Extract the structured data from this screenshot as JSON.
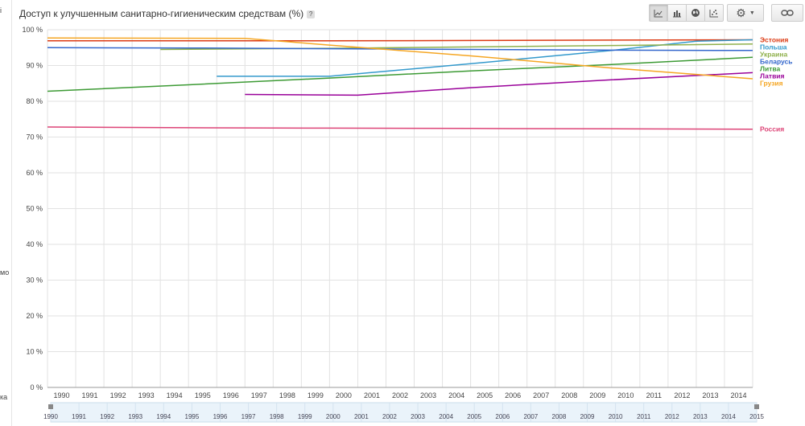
{
  "title": "Доступ к улучшенным санитарно-гигиеническим средствам (%)",
  "help_label": "?",
  "left_fragments": [
    "і",
    "мо",
    "ка"
  ],
  "toolbar": {
    "line_icon": "line-chart-icon",
    "bar_icon": "bar-chart-icon",
    "map_icon": "globe-icon",
    "scatter_icon": "scatter-chart-icon",
    "settings_icon": "gear-icon",
    "link_icon": "link-icon"
  },
  "chart_data": {
    "type": "line",
    "title": "Доступ к улучшенным санитарно-гигиеническим средствам (%)",
    "xlabel": "",
    "ylabel": "",
    "xlim": [
      1990,
      2015
    ],
    "ylim": [
      0,
      100
    ],
    "y_ticks": [
      "0 %",
      "10 %",
      "20 %",
      "30 %",
      "40 %",
      "50 %",
      "60 %",
      "70 %",
      "80 %",
      "90 %",
      "100 %"
    ],
    "x_ticks": [
      "1990",
      "1991",
      "1992",
      "1993",
      "1994",
      "1995",
      "1996",
      "1997",
      "1998",
      "1999",
      "2000",
      "2001",
      "2002",
      "2003",
      "2004",
      "2005",
      "2006",
      "2007",
      "2008",
      "2009",
      "2010",
      "2011",
      "2012",
      "2013",
      "2014"
    ],
    "timeline_ticks": [
      "1990",
      "1991",
      "1992",
      "1993",
      "1994",
      "1995",
      "1996",
      "1997",
      "1998",
      "1999",
      "2000",
      "2001",
      "2002",
      "2003",
      "2004",
      "2005",
      "2006",
      "2007",
      "2008",
      "2009",
      "2010",
      "2011",
      "2012",
      "2013",
      "2014",
      "2015"
    ],
    "grid": true,
    "legend": "right",
    "series": [
      {
        "name": "Эстония",
        "color": "#dc3912",
        "x": [
          1990,
          1995,
          2000,
          2005,
          2010,
          2015
        ],
        "y": [
          96.9,
          96.9,
          96.9,
          97.0,
          97.1,
          97.2
        ]
      },
      {
        "name": "Польша",
        "color": "#3399cc",
        "x": [
          1996,
          2000,
          2005,
          2010,
          2013,
          2015
        ],
        "y": [
          87.0,
          87.0,
          90.5,
          94.2,
          96.8,
          97.2
        ]
      },
      {
        "name": "Украина",
        "color": "#8fb04b",
        "x": [
          1994,
          2000,
          2005,
          2010,
          2015
        ],
        "y": [
          94.5,
          94.8,
          95.2,
          95.6,
          96.0
        ]
      },
      {
        "name": "Беларусь",
        "color": "#3366cc",
        "x": [
          1990,
          1995,
          2000,
          2005,
          2010,
          2015
        ],
        "y": [
          95.0,
          94.9,
          94.7,
          94.5,
          94.3,
          94.2
        ]
      },
      {
        "name": "Литва",
        "color": "#3c9a34",
        "x": [
          1990,
          1995,
          2000,
          2005,
          2010,
          2015
        ],
        "y": [
          82.8,
          84.6,
          86.5,
          88.5,
          90.3,
          92.3
        ]
      },
      {
        "name": "Латвия",
        "color": "#990099",
        "x": [
          1997,
          2001,
          2005,
          2010,
          2015
        ],
        "y": [
          81.9,
          81.7,
          83.8,
          86.0,
          88.0
        ]
      },
      {
        "name": "Грузия",
        "color": "#f5a623",
        "x": [
          1990,
          1997,
          2000,
          2005,
          2010,
          2015
        ],
        "y": [
          97.7,
          97.6,
          95.7,
          92.7,
          89.3,
          86.3
        ]
      },
      {
        "name": "Россия",
        "color": "#dd4477",
        "x": [
          1990,
          1995,
          2000,
          2005,
          2010,
          2015
        ],
        "y": [
          72.8,
          72.6,
          72.5,
          72.4,
          72.3,
          72.2
        ]
      }
    ]
  }
}
